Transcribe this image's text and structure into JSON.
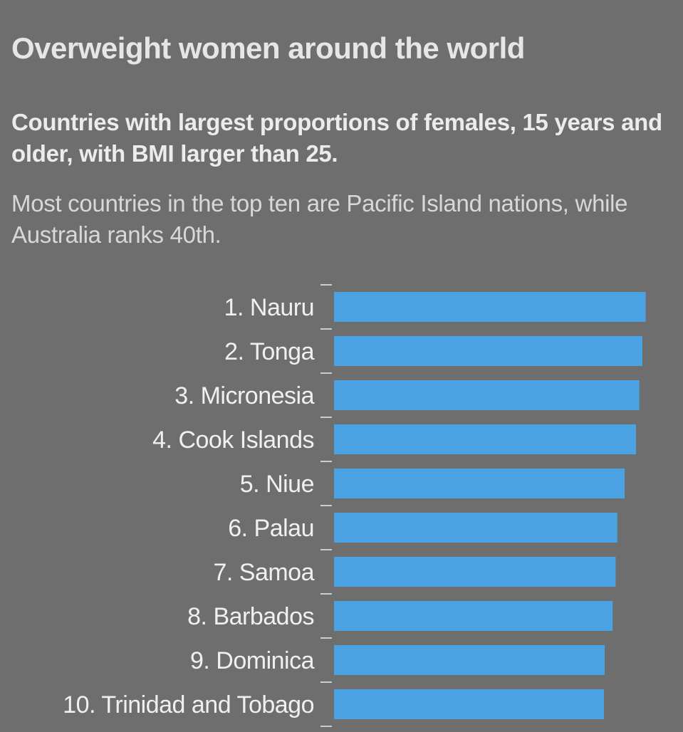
{
  "title": "Overweight women around the world",
  "subtitle": "Countries with largest proportions of females, 15 years and older, with BMI larger than 25.",
  "description": "Most countries in the top ten are Pacific Island nations, while Australia ranks 40th.",
  "colors": {
    "bar": "#4ba3e3",
    "background": "#6e6e6e",
    "text": "#f0f0f0",
    "tick": "#cccccc"
  },
  "chart_data": {
    "type": "bar",
    "orientation": "horizontal",
    "categories": [
      "1. Nauru",
      "2. Tonga",
      "3. Micronesia",
      "4. Cook Islands",
      "5. Niue",
      "6. Palau",
      "7. Samoa",
      "8. Barbados",
      "9. Dominica",
      "10. Trinidad and Tobago"
    ],
    "values": [
      93.5,
      92.5,
      91.6,
      90.6,
      87.2,
      85.0,
      84.5,
      83.6,
      81.2,
      81.0
    ],
    "xlim": [
      0,
      100
    ],
    "grid": false,
    "legend": "none"
  }
}
